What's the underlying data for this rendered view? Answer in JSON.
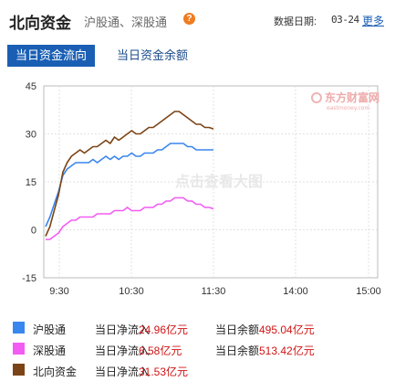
{
  "header": {
    "title": "北向资金",
    "subtitle": "沪股通、深股通",
    "help_glyph": "?",
    "date_label": "数据日期:",
    "date_value": "03-24",
    "more_label": "更多"
  },
  "tabs": [
    {
      "label": "当日资金流向",
      "active": true
    },
    {
      "label": "当日资金余额",
      "active": false
    }
  ],
  "watermarks": {
    "logo_text": "东方财富网",
    "logo_sub": "eastmoney.com",
    "center_text": "点击查看大图"
  },
  "chart_data": {
    "type": "line",
    "ylim": [
      -15,
      45
    ],
    "yticks": [
      -15,
      0,
      15,
      30,
      45
    ],
    "xticks": [
      "9:30",
      "10:30",
      "11:30",
      "14:00",
      "15:00"
    ],
    "grid": true,
    "series": [
      {
        "name": "沪股通",
        "color": "#3a86ef",
        "values": [
          1,
          4,
          8,
          12,
          17,
          19,
          20,
          21,
          21,
          21,
          21,
          22,
          21,
          22,
          23,
          22,
          23,
          22,
          23,
          23,
          24,
          23,
          23,
          24,
          24,
          24,
          25,
          25,
          26,
          27,
          27,
          27,
          27,
          26,
          26,
          25,
          25,
          25,
          25,
          25
        ]
      },
      {
        "name": "深股通",
        "color": "#f25cf2",
        "values": [
          -3,
          -3,
          -2,
          -1,
          1,
          2,
          3,
          3,
          4,
          4,
          4,
          4,
          5,
          5,
          5,
          5,
          6,
          6,
          6,
          7,
          6,
          6,
          6,
          7,
          7,
          7,
          8,
          8,
          9,
          9,
          10,
          10,
          10,
          9,
          9,
          8,
          8,
          7,
          7,
          6.58
        ]
      },
      {
        "name": "北向资金",
        "color": "#7b4416",
        "values": [
          -2,
          1,
          6,
          11,
          18,
          21,
          23,
          24,
          25,
          24,
          25,
          26,
          26,
          27,
          28,
          27,
          29,
          28,
          29,
          30,
          31,
          30,
          30,
          31,
          32,
          32,
          33,
          34,
          35,
          36,
          37,
          37,
          36,
          35,
          34,
          33,
          33,
          32,
          32,
          31.53
        ]
      }
    ]
  },
  "legend": [
    {
      "name": "沪股通",
      "color": "#3a86ef",
      "inflow_label": "当日净流入",
      "inflow": "24.96",
      "unit": "亿元",
      "balance_label": "当日余额",
      "balance": "495.04"
    },
    {
      "name": "深股通",
      "color": "#f25cf2",
      "inflow_label": "当日净流入",
      "inflow": "6.58",
      "unit": "亿元",
      "balance_label": "当日余额",
      "balance": "513.42"
    },
    {
      "name": "北向资金",
      "color": "#7b4416",
      "inflow_label": "当日净流入",
      "inflow": "31.53",
      "unit": "亿元",
      "balance_label": "",
      "balance": ""
    }
  ]
}
